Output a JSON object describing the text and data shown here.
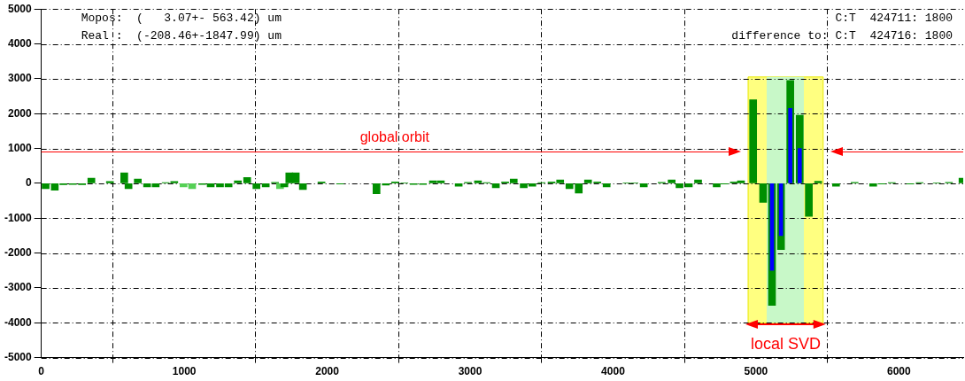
{
  "chart_data": {
    "type": "bar",
    "xlim": [
      0,
      6450
    ],
    "xticks": [
      0,
      1000,
      2000,
      3000,
      4000,
      5000,
      6000
    ],
    "ylim": [
      -5000,
      5000
    ],
    "yticks": [
      -5000,
      -4000,
      -3000,
      -2000,
      -1000,
      0,
      1000,
      2000,
      3000,
      4000,
      5000
    ],
    "grid": true,
    "legend": false,
    "series": [
      {
        "x": [
          30,
          94,
          154,
          220,
          285,
          350,
          480,
          580,
          610,
          675,
          740,
          800,
          870,
          930,
          995,
          1055,
          1125,
          1185,
          1250,
          1310,
          1375,
          1440,
          1505,
          1570,
          1635,
          1670,
          1700,
          1735,
          1780,
          1830,
          1960,
          2090,
          2345,
          2410,
          2475,
          2540,
          2605,
          2670,
          2740,
          2795,
          2920,
          2985,
          3055,
          3115,
          3180,
          3245,
          3305,
          3375,
          3435,
          3500,
          3570,
          3630,
          3695,
          3760,
          3825,
          3890,
          3955,
          4095,
          4150,
          4215,
          4340,
          4410,
          4465,
          4530,
          4595,
          4725,
          4780,
          4845,
          4895,
          4980,
          5050,
          5112,
          5175,
          5240,
          5306,
          5370,
          5435,
          5560,
          5690,
          5820,
          5880,
          5950,
          6080,
          6145,
          6265,
          6350,
          6445
        ],
        "values": [
          -150,
          -200,
          -40,
          -30,
          -40,
          150,
          50,
          300,
          -150,
          120,
          -100,
          -100,
          20,
          50,
          -100,
          -150,
          -30,
          -100,
          -100,
          -100,
          70,
          170,
          -150,
          -100,
          30,
          -150,
          -100,
          300,
          300,
          -180,
          40,
          -20,
          -300,
          -50,
          40,
          10,
          -30,
          -30,
          70,
          70,
          -80,
          30,
          70,
          20,
          -130,
          40,
          120,
          -130,
          -80,
          20,
          40,
          100,
          -150,
          -280,
          100,
          40,
          -100,
          10,
          10,
          -100,
          30,
          100,
          -130,
          -100,
          100,
          -100,
          -20,
          40,
          70,
          2400,
          -550,
          -3500,
          -1900,
          2950,
          1950,
          -950,
          60,
          -80,
          30,
          -80,
          -20,
          20,
          -20,
          20,
          10,
          30,
          150
        ],
        "colors": [
          "#008f00",
          "#008f00",
          "#008f00",
          "#008f00",
          "#008f00",
          "#008f00",
          "#008f00",
          "#008f00",
          "#008f00",
          "#008f00",
          "#008f00",
          "#008f00",
          "#008f00",
          "#008f00",
          "#55d055",
          "#55d055",
          "#008f00",
          "#008f00",
          "#008f00",
          "#008f00",
          "#008f00",
          "#008f00",
          "#008f00",
          "#008f00",
          "#008f00",
          "#55d055",
          "#008f00",
          "#008f00",
          "#008f00",
          "#008f00",
          "#008f00",
          "#008f00",
          "#008f00",
          "#008f00",
          "#008f00",
          "#008f00",
          "#008f00",
          "#008f00",
          "#008f00",
          "#008f00",
          "#008f00",
          "#008f00",
          "#008f00",
          "#008f00",
          "#008f00",
          "#008f00",
          "#008f00",
          "#008f00",
          "#008f00",
          "#008f00",
          "#008f00",
          "#008f00",
          "#008f00",
          "#008f00",
          "#008f00",
          "#008f00",
          "#008f00",
          "#008f00",
          "#008f00",
          "#008f00",
          "#008f00",
          "#008f00",
          "#008f00",
          "#008f00",
          "#008f00",
          "#008f00",
          "#008f00",
          "#008f00",
          "#008f00",
          "#008f00",
          "#008f00",
          "#008f00",
          "#008f00",
          "#008f00",
          "#008f00",
          "#008f00",
          "#008f00",
          "#008f00",
          "#008f00",
          "#008f00",
          "#008f00",
          "#008f00",
          "#008f00",
          "#008f00",
          "#008f00",
          "#008f00",
          "#008f00"
        ]
      },
      {
        "color": "#0000ff",
        "x": [
          5112,
          5175,
          5240,
          5306
        ],
        "values": [
          -2500,
          -1500,
          2150,
          1000
        ]
      }
    ],
    "ref_lines": [
      {
        "axis": "y",
        "value": 900,
        "label": "global orbit",
        "color": "#ff0000"
      }
    ],
    "bands": [
      {
        "axis": "x",
        "from": 4945,
        "to": 5470,
        "label": "local SVD",
        "color": "#ffff80"
      },
      {
        "axis": "x",
        "from": 5075,
        "to": 5335,
        "color": "#c8f8c8"
      }
    ],
    "annotations": [
      "Mopos:  (   3.07+- 563.42) um",
      "Real :  (-208.46+-1847.99) um",
      "C:T  424711: 1800",
      "difference to: C:T  424716: 1800"
    ]
  }
}
